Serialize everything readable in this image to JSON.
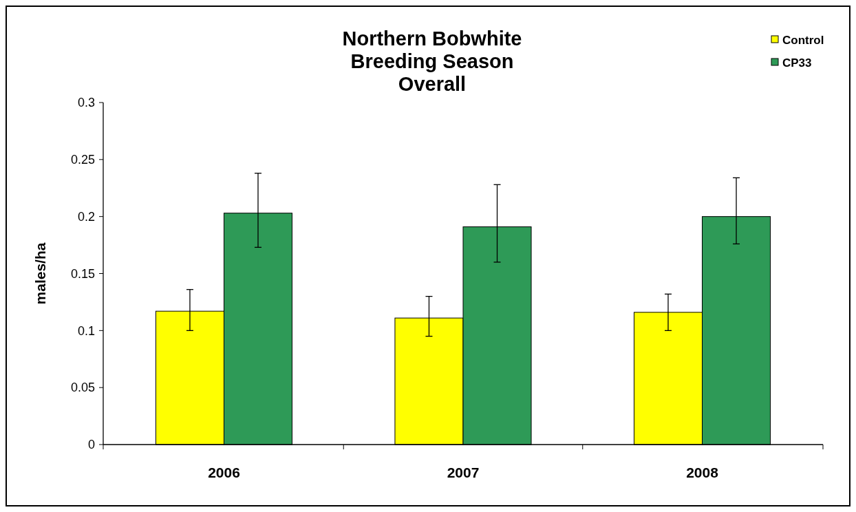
{
  "chart_data": {
    "type": "bar",
    "title": "Northern Bobwhite\nBreeding Season\nOverall",
    "ylabel": "males/ha",
    "categories": [
      "2006",
      "2007",
      "2008"
    ],
    "series": [
      {
        "name": "Control",
        "color": "#ffff00",
        "values": [
          0.117,
          0.111,
          0.116
        ],
        "errors": [
          [
            0.1,
            0.136
          ],
          [
            0.095,
            0.13
          ],
          [
            0.1,
            0.132
          ]
        ]
      },
      {
        "name": "CP33",
        "color": "#2e9a57",
        "values": [
          0.203,
          0.191,
          0.2
        ],
        "errors": [
          [
            0.173,
            0.238
          ],
          [
            0.16,
            0.228
          ],
          [
            0.176,
            0.234
          ]
        ]
      }
    ],
    "ylim": [
      0,
      0.3
    ],
    "yticks": [
      0,
      0.05,
      0.1,
      0.15,
      0.2,
      0.25,
      0.3
    ],
    "grid": false,
    "legend": "top right"
  }
}
